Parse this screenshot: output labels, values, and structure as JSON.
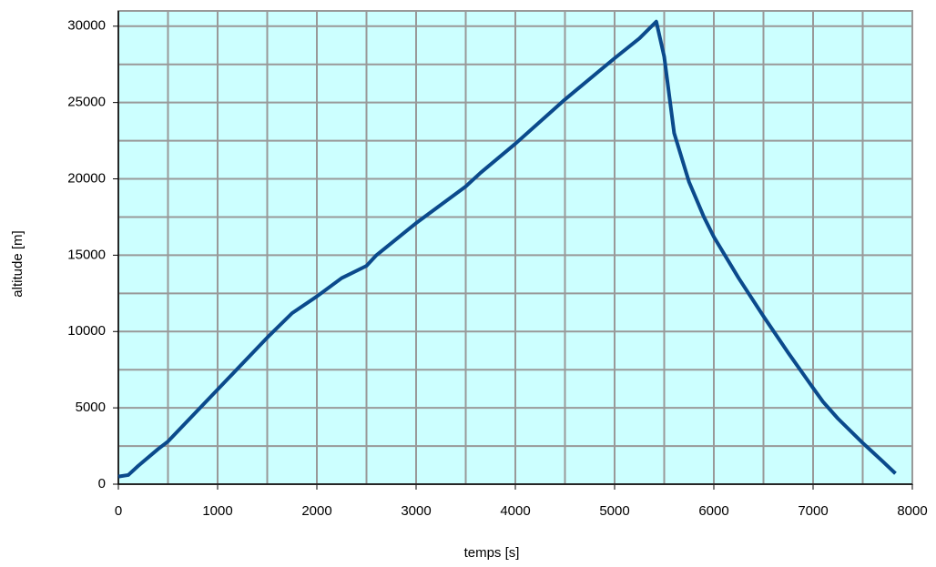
{
  "chart_data": {
    "type": "line",
    "xlabel": "temps [s]",
    "ylabel": "altitude [m]",
    "x": [
      0,
      100,
      200,
      400,
      500,
      1000,
      1500,
      1750,
      2000,
      2250,
      2500,
      2600,
      3000,
      3500,
      3650,
      4000,
      4500,
      5000,
      5250,
      5420,
      5500,
      5600,
      5750,
      5900,
      6000,
      6250,
      6500,
      6750,
      7000,
      7100,
      7250,
      7500,
      7600,
      7700,
      7830
    ],
    "series": [
      {
        "color": "#0b4a8c",
        "values": [
          500,
          600,
          1200,
          2300,
          2800,
          6200,
          9600,
          11200,
          12300,
          13500,
          14300,
          15000,
          17100,
          19500,
          20400,
          22300,
          25200,
          27900,
          29200,
          30300,
          28000,
          23000,
          19800,
          17500,
          16200,
          13500,
          11000,
          8600,
          6300,
          5400,
          4300,
          2700,
          2100,
          1500,
          700
        ]
      }
    ],
    "xlim": [
      0,
      8000
    ],
    "xticks": [
      0,
      1000,
      2000,
      3000,
      4000,
      5000,
      6000,
      7000,
      8000
    ],
    "ylim": [
      0,
      31000
    ],
    "yticks": [
      0,
      5000,
      10000,
      15000,
      20000,
      25000,
      30000
    ],
    "x_minor_grid": [
      500,
      1500,
      2500,
      3500,
      4500,
      5500,
      6500,
      7500
    ],
    "y_minor_grid": [
      2500,
      7500,
      12500,
      17500,
      22500,
      27500
    ],
    "grid": true,
    "background": "#ccffff"
  }
}
